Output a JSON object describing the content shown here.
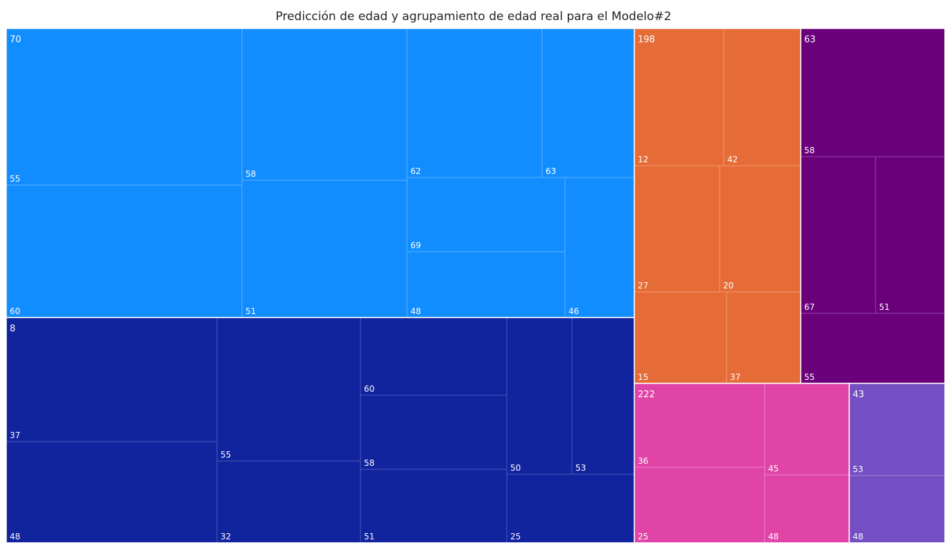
{
  "chart_data": {
    "type": "treemap",
    "title": "Predicción de edad y agrupamiento de edad real para el Modelo#2",
    "groups": [
      {
        "color": "#118DFF",
        "border": "#5FB2FF",
        "values": [
          70,
          55,
          60,
          58,
          51,
          62,
          63,
          69,
          48,
          46
        ]
      },
      {
        "color": "#12239E",
        "border": "#4A58B8",
        "values": [
          8,
          37,
          48,
          55,
          32,
          60,
          58,
          51,
          50,
          53,
          25
        ]
      },
      {
        "color": "#E66C37",
        "border": "#F09A72",
        "values": [
          198,
          12,
          42,
          27,
          20,
          15,
          37
        ]
      },
      {
        "color": "#6B007B",
        "border": "#9646A3",
        "values": [
          63,
          58,
          67,
          51,
          55
        ]
      },
      {
        "color": "#E044A7",
        "border": "#EC86C7",
        "values": [
          222,
          36,
          25,
          45,
          48
        ]
      },
      {
        "color": "#744EC2",
        "border": "#9F86D8",
        "values": [
          43,
          53,
          48
        ]
      }
    ]
  }
}
